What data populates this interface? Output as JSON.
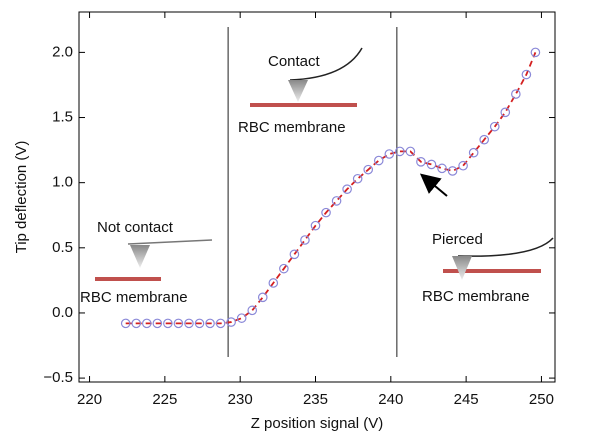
{
  "chart_data": {
    "type": "scatter",
    "x_label": "Z position signal (V)",
    "y_label": "Tip deflection (V)",
    "xlim": [
      219.3,
      250.9
    ],
    "ylim": [
      -0.53,
      2.31
    ],
    "xticks": [
      220,
      225,
      230,
      235,
      240,
      245,
      250
    ],
    "yticks": [
      {
        "value": -0.5,
        "label": "−0.5"
      },
      {
        "value": 0,
        "label": "0.0"
      },
      0.5,
      {
        "value": 1,
        "label": "1.0"
      },
      1.5,
      {
        "value": 2,
        "label": "2.0"
      }
    ],
    "vlines": [
      229.2,
      240.4
    ],
    "marker_color": "#8a88d8",
    "line_color": "#d42020",
    "x": [
      222.4,
      223.1,
      223.8,
      224.5,
      225.2,
      225.9,
      226.6,
      227.3,
      228.0,
      228.7,
      229.4,
      230.1,
      230.8,
      231.5,
      232.2,
      232.9,
      233.6,
      234.3,
      235.0,
      235.7,
      236.4,
      237.1,
      237.8,
      238.5,
      239.2,
      239.9,
      240.6,
      241.3,
      242.0,
      242.7,
      243.4,
      244.1,
      244.8,
      245.5,
      246.2,
      246.9,
      247.6,
      248.3,
      249.0,
      249.6
    ],
    "values": [
      -0.08,
      -0.08,
      -0.08,
      -0.08,
      -0.08,
      -0.08,
      -0.08,
      -0.08,
      -0.08,
      -0.08,
      -0.07,
      -0.04,
      0.02,
      0.12,
      0.23,
      0.34,
      0.45,
      0.56,
      0.67,
      0.77,
      0.86,
      0.95,
      1.03,
      1.1,
      1.17,
      1.22,
      1.24,
      1.24,
      1.16,
      1.14,
      1.11,
      1.09,
      1.13,
      1.23,
      1.33,
      1.43,
      1.54,
      1.68,
      1.83,
      2.0
    ],
    "annotations": [
      "Not contact",
      "RBC membrane",
      "Contact",
      "RBC membrane",
      "Pierced",
      "RBC membrane"
    ]
  }
}
